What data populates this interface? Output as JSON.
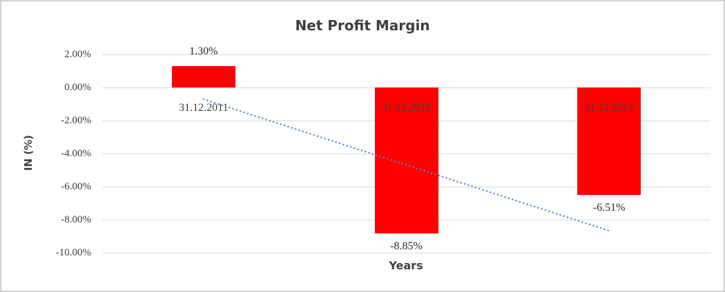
{
  "chart_data": {
    "type": "bar",
    "title": "Net Profit Margin",
    "xlabel": "Years",
    "ylabel": "IN (%)",
    "categories": [
      "31.12.2011",
      "31.12.2012",
      "31.12.2013"
    ],
    "values": [
      1.3,
      -8.85,
      -6.51
    ],
    "data_labels": [
      "1.30%",
      "-8.85%",
      "-6.51%"
    ],
    "ylim": [
      -10,
      2
    ],
    "ytick_step": 2,
    "ytick_labels": [
      "2.00%",
      "0.00%",
      "-2.00%",
      "-4.00%",
      "-6.00%",
      "-8.00%",
      "-10.00%"
    ],
    "grid": true,
    "legend": false,
    "bar_color": "#ff0000",
    "gridline_color": "#d9d9d9",
    "frame_color": "#d2d2d2",
    "trendline": {
      "style": "dotted",
      "color": "#4f86c6",
      "start": {
        "category_index": 0,
        "value": -0.71
      },
      "end": {
        "category_index": 2,
        "value": -8.67
      }
    }
  }
}
